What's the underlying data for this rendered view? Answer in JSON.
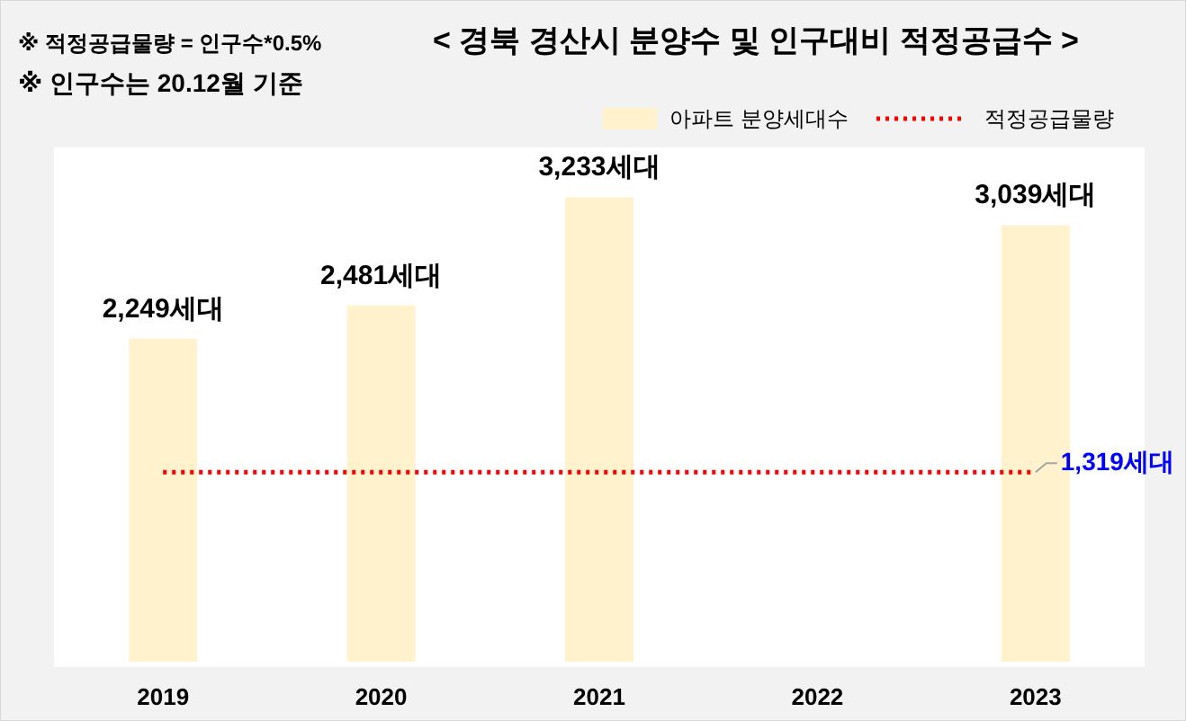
{
  "chart_data": {
    "type": "bar",
    "title": "< 경북 경산시 분양수 및 인구대비 적정공급수 >",
    "annotations": [
      "※ 적정공급물량 = 인구수*0.5%",
      "※ 인구수는 20.12월 기준"
    ],
    "categories": [
      "2019",
      "2020",
      "2021",
      "2022",
      "2023"
    ],
    "ylim": [
      0,
      3580
    ],
    "tick_labels": "x",
    "legend": "top right",
    "series": [
      {
        "name": "아파트 분양세대수",
        "color": "#fff2cc",
        "values": [
          2249,
          2481,
          3233,
          null,
          3039
        ],
        "value_labels": [
          "2,249세대",
          "2,481세대",
          "3,233세대",
          null,
          "3,039세대"
        ]
      },
      {
        "name": "적정공급물량",
        "type": "line",
        "color": "#ff0000",
        "line_style": "dotted",
        "values": [
          1319,
          1319,
          1319,
          1319,
          1319
        ],
        "value_labels": [
          null,
          null,
          null,
          null,
          "1,319세대"
        ]
      }
    ]
  }
}
